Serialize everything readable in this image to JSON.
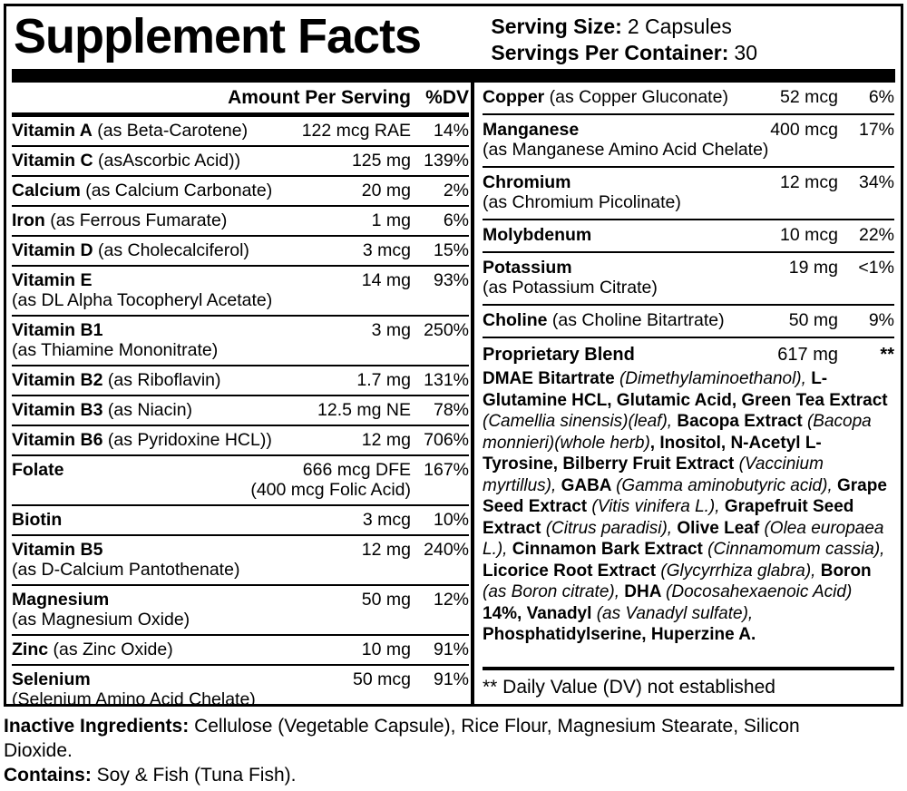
{
  "header": {
    "title": "Supplement Facts",
    "serving_size_label": "Serving Size:",
    "serving_size_value": "2 Capsules",
    "servings_label": "Servings Per Container:",
    "servings_value": "30"
  },
  "left": {
    "header_amount": "Amount Per Serving",
    "header_dv": "%DV",
    "rows": [
      {
        "name": "Vitamin A",
        "detail": "(as Beta-Carotene)",
        "amount": "122 mcg RAE",
        "dv": "14%"
      },
      {
        "name": "Vitamin C",
        "detail": "(asAscorbic Acid))",
        "amount": "125 mg",
        "dv": "139%"
      },
      {
        "name": "Calcium",
        "detail": "(as Calcium Carbonate)",
        "amount": "20 mg",
        "dv": "2%"
      },
      {
        "name": "Iron",
        "detail": "(as Ferrous Fumarate)",
        "amount": "1 mg",
        "dv": "6%"
      },
      {
        "name": "Vitamin D",
        "detail": "(as Cholecalciferol)",
        "amount": "3 mcg",
        "dv": "15%"
      },
      {
        "name": "Vitamin E",
        "detail2": "(as DL Alpha Tocopheryl Acetate)",
        "amount": "14 mg",
        "dv": "93%"
      },
      {
        "name": "Vitamin B1",
        "detail2": "(as Thiamine Mononitrate)",
        "amount": "3 mg",
        "dv": "250%"
      },
      {
        "name": "Vitamin B2",
        "detail": "(as Riboflavin)",
        "amount": "1.7 mg",
        "dv": "131%"
      },
      {
        "name": "Vitamin B3",
        "detail": "(as Niacin)",
        "amount": "12.5 mg NE",
        "dv": "78%"
      },
      {
        "name": "Vitamin B6",
        "detail": "(as Pyridoxine HCL))",
        "amount": "12 mg",
        "dv": "706%"
      },
      {
        "name": "Folate",
        "amount": "666 mcg DFE",
        "dv": "167%",
        "sub_amount": "(400 mcg Folic Acid)"
      },
      {
        "name": "Biotin",
        "amount": "3 mcg",
        "dv": "10%"
      },
      {
        "name": "Vitamin B5",
        "detail2": "(as D-Calcium Pantothenate)",
        "amount": "12 mg",
        "dv": "240%"
      },
      {
        "name": "Magnesium",
        "detail2": "(as Magnesium Oxide)",
        "amount": "50 mg",
        "dv": "12%"
      },
      {
        "name": "Zinc",
        "detail": "(as Zinc Oxide)",
        "amount": "10 mg",
        "dv": "91%"
      },
      {
        "name": "Selenium",
        "detail2": "(Selenium Amino Acid Chelate)",
        "amount": "50 mcg",
        "dv": "91%"
      }
    ]
  },
  "right": {
    "rows": [
      {
        "name": "Copper",
        "detail": "(as Copper Gluconate)",
        "amount": "52 mcg",
        "dv": "6%"
      },
      {
        "name": "Manganese",
        "detail2": "(as Manganese Amino Acid Chelate)",
        "amount": "400 mcg",
        "dv": "17%"
      },
      {
        "name": "Chromium",
        "detail2": "(as Chromium Picolinate)",
        "amount": "12 mcg",
        "dv": "34%"
      },
      {
        "name": "Molybdenum",
        "amount": "10 mcg",
        "dv": "22%"
      },
      {
        "name": "Potassium",
        "detail2": "(as Potassium Citrate)",
        "amount": "19 mg",
        "dv": "<1%"
      },
      {
        "name": "Choline",
        "detail": "(as Choline Bitartrate)",
        "amount": "50 mg",
        "dv": "9%"
      }
    ],
    "blend": {
      "name": "Proprietary Blend",
      "amount": "617 mg",
      "dv": "**",
      "segments": [
        {
          "s": "b",
          "t": "DMAE Bitartrate "
        },
        {
          "s": "i",
          "t": "(Dimethylaminoethanol), "
        },
        {
          "s": "b",
          "t": "L-Glutamine HCL, Glutamic Acid, Green Tea Extract "
        },
        {
          "s": "i",
          "t": "(Camellia sinensis)(leaf), "
        },
        {
          "s": "b",
          "t": "Bacopa Extract "
        },
        {
          "s": "i",
          "t": "(Bacopa monnieri)(whole herb)"
        },
        {
          "s": "b",
          "t": ", Inositol, N-Acetyl L-Tyrosine, Bilberry Fruit Extract "
        },
        {
          "s": "i",
          "t": "(Vaccinium myrtillus), "
        },
        {
          "s": "b",
          "t": "GABA "
        },
        {
          "s": "i",
          "t": "(Gamma aminobutyric acid), "
        },
        {
          "s": "b",
          "t": "Grape Seed Extract "
        },
        {
          "s": "i",
          "t": "(Vitis vinifera L.), "
        },
        {
          "s": "b",
          "t": "Grapefruit Seed Extract "
        },
        {
          "s": "i",
          "t": "(Citrus paradisi), "
        },
        {
          "s": "b",
          "t": "Olive Leaf "
        },
        {
          "s": "i",
          "t": "(Olea europaea L.), "
        },
        {
          "s": "b",
          "t": "Cinnamon Bark Extract "
        },
        {
          "s": "i",
          "t": "(Cinnamomum cassia), "
        },
        {
          "s": "b",
          "t": "Licorice Root Extract "
        },
        {
          "s": "i",
          "t": "(Glycyrrhiza glabra), "
        },
        {
          "s": "b",
          "t": "Boron "
        },
        {
          "s": "i",
          "t": "(as Boron citrate), "
        },
        {
          "s": "b",
          "t": "DHA "
        },
        {
          "s": "i",
          "t": "(Docosahexaenoic Acid) "
        },
        {
          "s": "b",
          "t": "14%, Vanadyl "
        },
        {
          "s": "i",
          "t": "(as Vanadyl sulfate), "
        },
        {
          "s": "b",
          "t": "Phosphatidylserine, Huperzine A."
        }
      ]
    },
    "footnote": "** Daily Value (DV) not established"
  },
  "footer": {
    "inactive_label": "Inactive Ingredients:",
    "inactive_value": "Cellulose (Vegetable Capsule), Rice Flour, Magnesium Stearate, Silicon Dioxide.",
    "contains_label": "Contains:",
    "contains_value": "Soy & Fish (Tuna Fish)."
  }
}
